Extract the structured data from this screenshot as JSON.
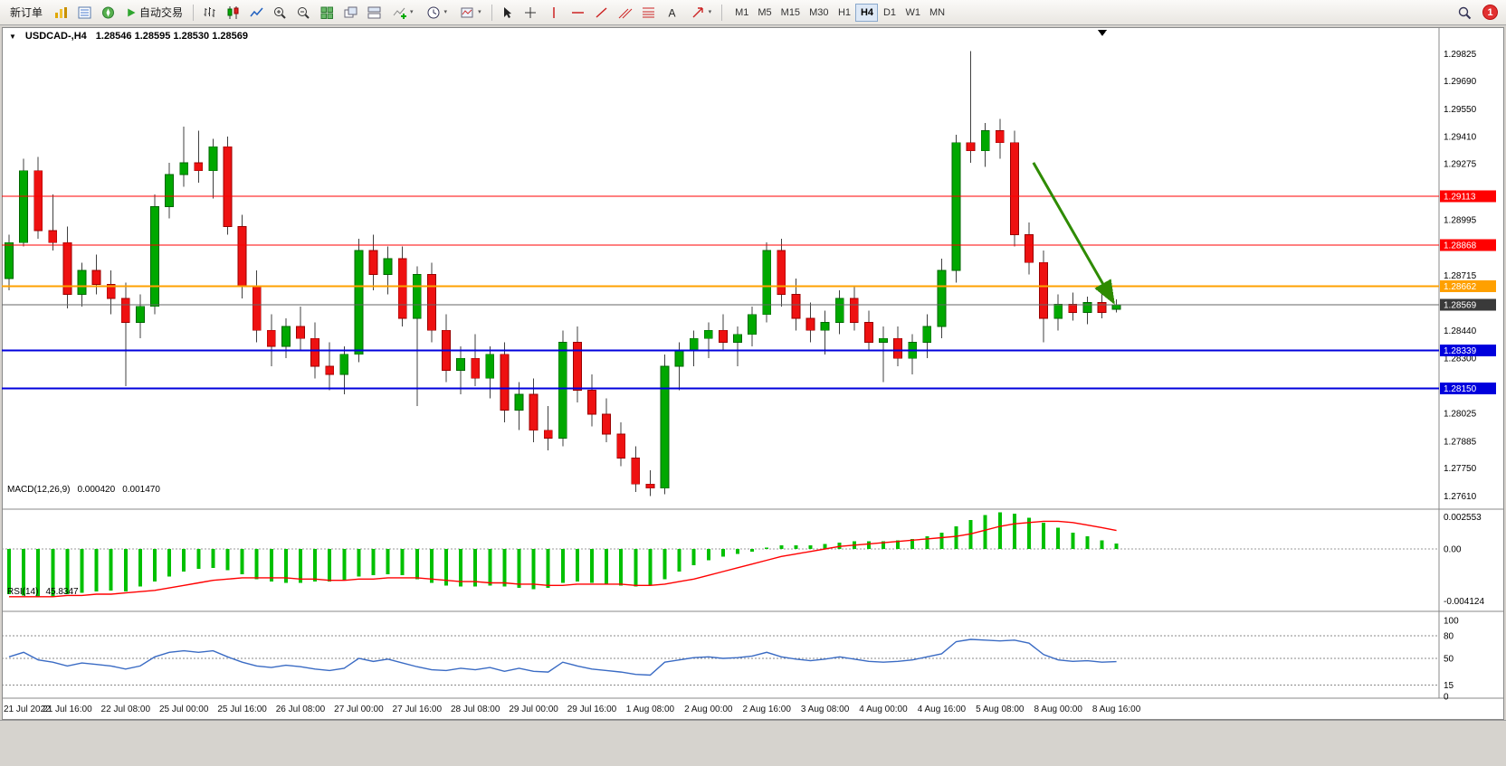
{
  "toolbar": {
    "new_order_label": "新订单",
    "autotrade_label": "自动交易",
    "timeframes": [
      "M1",
      "M5",
      "M15",
      "M30",
      "H1",
      "H4",
      "D1",
      "W1",
      "MN"
    ],
    "active_timeframe": "H4",
    "notification_count": "1",
    "dropdown_glyph": "▾",
    "text_tool_glyph": "A"
  },
  "chart_header": {
    "collapse_glyph": "▼",
    "symbol_period": "USDCAD-,H4",
    "ohlc": "1.28546 1.28595 1.28530 1.28569"
  },
  "chart_data": [
    {
      "type": "candlestick",
      "symbol": "USDCAD-",
      "period": "H4",
      "current_ohlc": {
        "open": "1.28546",
        "high": "1.28595",
        "low": "1.28530",
        "close": "1.28569"
      },
      "up_color": "#00a800",
      "down_color": "#ee1111",
      "wick_color": "#404040",
      "ylim": [
        1.27545,
        1.2995
      ],
      "y_ticks": [
        "1.29825",
        "1.29690",
        "1.29550",
        "1.29410",
        "1.29275",
        "1.28995",
        "1.28715",
        "1.28440",
        "1.28300",
        "1.28025",
        "1.27885",
        "1.27750",
        "1.27610"
      ],
      "x_labels": [
        "21 Jul 2022",
        "21 Jul 16:00",
        "22 Jul 08:00",
        "25 Jul 00:00",
        "25 Jul 16:00",
        "26 Jul 08:00",
        "27 Jul 00:00",
        "27 Jul 16:00",
        "28 Jul 08:00",
        "29 Jul 00:00",
        "29 Jul 16:00",
        "1 Aug 08:00",
        "2 Aug 00:00",
        "2 Aug 16:00",
        "3 Aug 08:00",
        "4 Aug 00:00",
        "4 Aug 16:00",
        "5 Aug 08:00",
        "8 Aug 00:00",
        "8 Aug 16:00"
      ],
      "candles": [
        [
          1.287,
          1.2892,
          1.2864,
          1.2888
        ],
        [
          1.2888,
          1.293,
          1.2886,
          1.2924
        ],
        [
          1.2924,
          1.2931,
          1.289,
          1.2894
        ],
        [
          1.2894,
          1.2912,
          1.2884,
          1.2888
        ],
        [
          1.2888,
          1.2896,
          1.2855,
          1.2862
        ],
        [
          1.2862,
          1.2878,
          1.2856,
          1.2874
        ],
        [
          1.2874,
          1.2882,
          1.2862,
          1.2867
        ],
        [
          1.2867,
          1.2874,
          1.2852,
          1.286
        ],
        [
          1.286,
          1.2868,
          1.2816,
          1.2848
        ],
        [
          1.2848,
          1.2862,
          1.284,
          1.2856
        ],
        [
          1.2856,
          1.2912,
          1.2852,
          1.2906
        ],
        [
          1.2906,
          1.2928,
          1.29,
          1.2922
        ],
        [
          1.2922,
          1.2946,
          1.2916,
          1.2928
        ],
        [
          1.2928,
          1.2944,
          1.2918,
          1.2924
        ],
        [
          1.2924,
          1.294,
          1.291,
          1.2936
        ],
        [
          1.2936,
          1.2941,
          1.2892,
          1.2896
        ],
        [
          1.2896,
          1.2902,
          1.286,
          1.2866
        ],
        [
          1.2866,
          1.2874,
          1.2838,
          1.2844
        ],
        [
          1.2844,
          1.2852,
          1.2826,
          1.2836
        ],
        [
          1.2836,
          1.285,
          1.283,
          1.2846
        ],
        [
          1.2846,
          1.2856,
          1.2834,
          1.284
        ],
        [
          1.284,
          1.2848,
          1.282,
          1.2826
        ],
        [
          1.2826,
          1.2838,
          1.2814,
          1.2822
        ],
        [
          1.2822,
          1.2836,
          1.2812,
          1.2832
        ],
        [
          1.2832,
          1.289,
          1.2828,
          1.2884
        ],
        [
          1.2884,
          1.2892,
          1.2864,
          1.2872
        ],
        [
          1.2872,
          1.2886,
          1.2862,
          1.288
        ],
        [
          1.288,
          1.2886,
          1.2846,
          1.285
        ],
        [
          1.285,
          1.2876,
          1.2806,
          1.2872
        ],
        [
          1.2872,
          1.2878,
          1.2838,
          1.2844
        ],
        [
          1.2844,
          1.2852,
          1.2818,
          1.2824
        ],
        [
          1.2824,
          1.2836,
          1.2812,
          1.283
        ],
        [
          1.283,
          1.2842,
          1.2816,
          1.282
        ],
        [
          1.282,
          1.2836,
          1.281,
          1.2832
        ],
        [
          1.2832,
          1.2838,
          1.2798,
          1.2804
        ],
        [
          1.2804,
          1.2818,
          1.2794,
          1.2812
        ],
        [
          1.2812,
          1.282,
          1.2788,
          1.2794
        ],
        [
          1.2794,
          1.2806,
          1.2784,
          1.279
        ],
        [
          1.279,
          1.2844,
          1.2786,
          1.2838
        ],
        [
          1.2838,
          1.2846,
          1.2808,
          1.2814
        ],
        [
          1.2814,
          1.2822,
          1.2796,
          1.2802
        ],
        [
          1.2802,
          1.281,
          1.2788,
          1.2792
        ],
        [
          1.2792,
          1.2798,
          1.2776,
          1.278
        ],
        [
          1.278,
          1.2786,
          1.2763,
          1.2767
        ],
        [
          1.2767,
          1.2774,
          1.2761,
          1.2765
        ],
        [
          1.2765,
          1.2832,
          1.2762,
          1.2826
        ],
        [
          1.2826,
          1.2838,
          1.2814,
          1.2834
        ],
        [
          1.2834,
          1.2844,
          1.2826,
          1.284
        ],
        [
          1.284,
          1.2848,
          1.283,
          1.2844
        ],
        [
          1.2844,
          1.2852,
          1.2834,
          1.2838
        ],
        [
          1.2838,
          1.2846,
          1.2826,
          1.2842
        ],
        [
          1.2842,
          1.2856,
          1.2836,
          1.2852
        ],
        [
          1.2852,
          1.2888,
          1.2848,
          1.2884
        ],
        [
          1.2884,
          1.289,
          1.2856,
          1.2862
        ],
        [
          1.2862,
          1.287,
          1.2844,
          1.285
        ],
        [
          1.285,
          1.2858,
          1.2838,
          1.2844
        ],
        [
          1.2844,
          1.2854,
          1.2832,
          1.2848
        ],
        [
          1.2848,
          1.2864,
          1.2842,
          1.286
        ],
        [
          1.286,
          1.2866,
          1.2844,
          1.2848
        ],
        [
          1.2848,
          1.2854,
          1.2834,
          1.2838
        ],
        [
          1.2838,
          1.2846,
          1.2818,
          1.284
        ],
        [
          1.284,
          1.2846,
          1.2826,
          1.283
        ],
        [
          1.283,
          1.2842,
          1.2822,
          1.2838
        ],
        [
          1.2838,
          1.2852,
          1.283,
          1.2846
        ],
        [
          1.2846,
          1.288,
          1.284,
          1.2874
        ],
        [
          1.2874,
          1.2942,
          1.2868,
          1.2938
        ],
        [
          1.2938,
          1.2984,
          1.2928,
          1.2934
        ],
        [
          1.2934,
          1.2948,
          1.2926,
          1.2944
        ],
        [
          1.2944,
          1.295,
          1.293,
          1.2938
        ],
        [
          1.2938,
          1.2944,
          1.2886,
          1.2892
        ],
        [
          1.2892,
          1.2898,
          1.2872,
          1.2878
        ],
        [
          1.2878,
          1.2884,
          1.2838,
          1.285
        ],
        [
          1.285,
          1.2862,
          1.2844,
          1.2857
        ],
        [
          1.2857,
          1.2863,
          1.2849,
          1.2853
        ],
        [
          1.2853,
          1.2861,
          1.2847,
          1.2858
        ],
        [
          1.2858,
          1.2864,
          1.285,
          1.2853
        ],
        [
          1.28546,
          1.28595,
          1.2853,
          1.28569
        ]
      ],
      "hlines": [
        {
          "value": 1.29113,
          "label": "1.29113",
          "color": "#ff0000",
          "width": 1
        },
        {
          "value": 1.28868,
          "label": "1.28868",
          "color": "#ff0000",
          "width": 1
        },
        {
          "value": 1.28662,
          "label": "1.28662",
          "color": "#ffa000",
          "width": 2
        },
        {
          "value": 1.28569,
          "label": "1.28569",
          "color": "#666666",
          "width": 1,
          "badge": "#3a3a3a"
        },
        {
          "value": 1.28339,
          "label": "1.28339",
          "color": "#0000dd",
          "width": 2
        },
        {
          "value": 1.2815,
          "label": "1.28150",
          "color": "#0000dd",
          "width": 2
        }
      ],
      "arrow": {
        "from_index": 70.3,
        "from_price": 1.2928,
        "to_index": 75.8,
        "to_price": 1.2858,
        "color": "#2e8b00"
      }
    },
    {
      "type": "macd-histogram",
      "label": "MACD(12,26,9)",
      "main_value": "0.000420",
      "signal_value": "0.001470",
      "y_ticks": [
        "0.002553",
        "0.00",
        "-0.004124"
      ],
      "y_tick_values": [
        0.002553,
        0,
        -0.004124
      ],
      "histogram_color": "#00c000",
      "signal_color": "#ff0000",
      "histogram": [
        -0.0036,
        -0.0037,
        -0.0038,
        -0.0038,
        -0.0036,
        -0.0035,
        -0.0034,
        -0.0033,
        -0.0034,
        -0.003,
        -0.0026,
        -0.0022,
        -0.0018,
        -0.0016,
        -0.0015,
        -0.0017,
        -0.002,
        -0.0024,
        -0.0026,
        -0.0027,
        -0.0027,
        -0.0026,
        -0.0026,
        -0.0025,
        -0.0022,
        -0.0021,
        -0.002,
        -0.0021,
        -0.0024,
        -0.0027,
        -0.0029,
        -0.003,
        -0.003,
        -0.0029,
        -0.003,
        -0.0031,
        -0.0032,
        -0.0031,
        -0.0027,
        -0.0026,
        -0.0027,
        -0.0028,
        -0.0029,
        -0.003,
        -0.0029,
        -0.0024,
        -0.0018,
        -0.0013,
        -0.0009,
        -0.0006,
        -0.0004,
        -0.0002,
        0.0001,
        0.0003,
        0.0003,
        0.0003,
        0.0004,
        0.0005,
        0.0006,
        0.0006,
        0.0006,
        0.0007,
        0.0008,
        0.001,
        0.0013,
        0.0018,
        0.0023,
        0.0027,
        0.0029,
        0.0028,
        0.0025,
        0.0021,
        0.0017,
        0.0013,
        0.001,
        0.0007,
        0.00042
      ],
      "signal": [
        -0.0038,
        -0.0038,
        -0.0038,
        -0.0038,
        -0.0037,
        -0.0037,
        -0.0036,
        -0.0036,
        -0.0035,
        -0.0034,
        -0.0033,
        -0.0031,
        -0.0029,
        -0.0027,
        -0.0025,
        -0.0024,
        -0.0023,
        -0.0023,
        -0.0023,
        -0.0023,
        -0.0024,
        -0.0024,
        -0.0025,
        -0.0025,
        -0.0024,
        -0.0024,
        -0.0023,
        -0.0023,
        -0.0023,
        -0.0024,
        -0.0025,
        -0.0026,
        -0.0026,
        -0.0027,
        -0.0027,
        -0.0028,
        -0.0028,
        -0.0029,
        -0.0029,
        -0.0028,
        -0.0028,
        -0.0028,
        -0.0028,
        -0.0029,
        -0.0029,
        -0.0028,
        -0.0026,
        -0.0024,
        -0.0021,
        -0.0018,
        -0.0015,
        -0.0012,
        -0.0009,
        -0.0006,
        -0.0004,
        -0.0002,
        0.0,
        0.0002,
        0.0003,
        0.0004,
        0.0005,
        0.0006,
        0.0007,
        0.0008,
        0.0009,
        0.001,
        0.0012,
        0.0015,
        0.0018,
        0.002,
        0.0021,
        0.0022,
        0.0022,
        0.0021,
        0.0019,
        0.0017,
        0.00147
      ]
    },
    {
      "type": "rsi-line",
      "label": "RSI(14)",
      "value": "45.8347",
      "y_ticks": [
        "100",
        "80",
        "50",
        "15",
        "0"
      ],
      "levels": [
        80,
        50,
        15
      ],
      "line_color": "#3a6bc4",
      "values": [
        52,
        58,
        48,
        45,
        40,
        44,
        42,
        40,
        36,
        40,
        52,
        58,
        60,
        58,
        60,
        52,
        45,
        40,
        38,
        41,
        39,
        36,
        34,
        37,
        50,
        46,
        49,
        44,
        39,
        35,
        34,
        37,
        35,
        38,
        33,
        37,
        33,
        32,
        45,
        40,
        36,
        34,
        32,
        29,
        28,
        45,
        48,
        51,
        52,
        50,
        51,
        53,
        58,
        52,
        49,
        47,
        49,
        52,
        49,
        46,
        45,
        46,
        48,
        52,
        56,
        72,
        75,
        74,
        73,
        74,
        70,
        55,
        48,
        46,
        47,
        45,
        45.8
      ]
    }
  ]
}
